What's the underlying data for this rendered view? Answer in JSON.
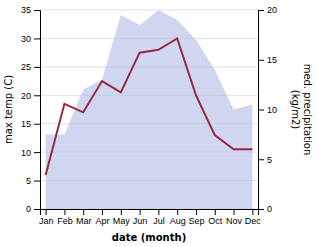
{
  "chart_data": {
    "type": "line",
    "xlabel": "date (month)",
    "ylabel": "max temp (C)",
    "y2label": "med. precipitation\n(kg/m2)",
    "categories": [
      "Jan",
      "Feb",
      "Mar",
      "Apr",
      "May",
      "Jun",
      "Jul",
      "Aug",
      "Sep",
      "Oct",
      "Nov",
      "Dec"
    ],
    "series": [
      {
        "type": "area",
        "axis": "y2",
        "color": "#b8c0e8",
        "values": [
          7.5,
          7.5,
          12,
          13,
          19.5,
          18.5,
          20,
          19,
          17,
          14,
          10,
          10.5
        ]
      },
      {
        "type": "line",
        "color": "#922b3e",
        "values": [
          6,
          18.5,
          17,
          22.5,
          20.5,
          27.5,
          28,
          30,
          20,
          13,
          10.5,
          10.5
        ]
      }
    ],
    "ylim": [
      0,
      35
    ],
    "yticks": [
      0,
      5,
      10,
      15,
      20,
      25,
      30,
      35
    ],
    "y2lim": [
      0,
      20
    ],
    "y2ticks": [
      0,
      5,
      10,
      15,
      20
    ],
    "grid": true
  }
}
